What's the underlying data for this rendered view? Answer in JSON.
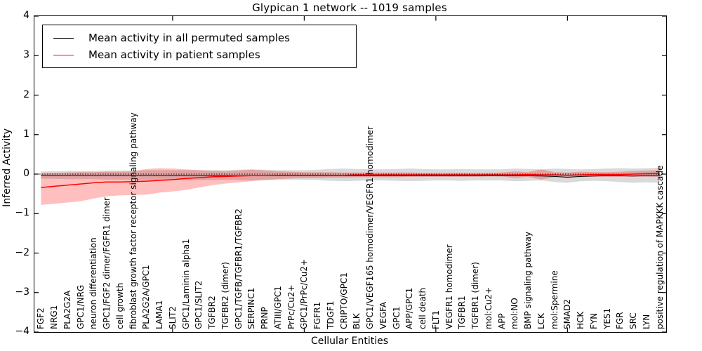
{
  "figure": {
    "title": "Glypican 1 network -- 1019 samples",
    "xlabel": "Cellular Entities",
    "ylabel": "Inferred Activity"
  },
  "legend": {
    "items": [
      {
        "label": "Mean activity in all permuted samples",
        "color": "#000000"
      },
      {
        "label": "Mean activity in patient samples",
        "color": "#ff0000"
      }
    ]
  },
  "chart_data": {
    "type": "line",
    "title": "Glypican 1 network -- 1019 samples",
    "xlabel": "Cellular Entities",
    "ylabel": "Inferred Activity",
    "ylim": [
      -4,
      4
    ],
    "yticks": [
      4,
      3,
      2,
      1,
      0,
      -1,
      -2,
      -3,
      -4
    ],
    "xtick_category_indices": [
      10,
      20,
      30,
      40
    ],
    "zero_reference_line": true,
    "grid": false,
    "legend_position": "upper left",
    "categories": [
      "FGF2",
      "NRG1",
      "PLA2G2A",
      "GPC1/NRG",
      "neuron differentiation",
      "GPC1/FGF2 dimer/FGFR1 dimer",
      "cell growth",
      "fibroblast growth factor receptor signaling pathway",
      "PLA2G2A/GPC1",
      "LAMA1",
      "SLIT2",
      "GPC1/Laminin alpha1",
      "GPC1/SLIT2",
      "TGFBR2",
      "TGFBR2 (dimer)",
      "GPC1/TGFB/TGFBR1/TGFBR2",
      "SERPINC1",
      "PRNP",
      "ATIII/GPC1",
      "PrPc/Cu2+",
      "GPC1/PrPc/Cu2+",
      "FGFR1",
      "TDGF1",
      "CRIPTO/GPC1",
      "BLK",
      "GPC1/VEGF165 homodimer/VEGFR1 homodimer",
      "VEGFA",
      "GPC1",
      "APP/GPC1",
      "cell death",
      "FLT1",
      "VEGFR1 homodimer",
      "TGFBR1",
      "TGFBR1 (dimer)",
      "mol:Cu2+",
      "APP",
      "mol:NO",
      "BMP signaling pathway",
      "LCK",
      "mol:Spermine",
      "SMAD2",
      "HCK",
      "FYN",
      "YES1",
      "FGR",
      "SRC",
      "LYN",
      "positive regulation of MAPKKK cascade"
    ],
    "series": [
      {
        "name": "Mean activity in all permuted samples",
        "color": "#000000",
        "stroke_width": 1.0,
        "values": [
          -0.04,
          -0.04,
          -0.04,
          -0.04,
          -0.04,
          -0.04,
          -0.04,
          -0.04,
          -0.04,
          -0.04,
          -0.04,
          -0.04,
          -0.04,
          -0.04,
          -0.04,
          -0.04,
          -0.04,
          -0.04,
          -0.04,
          -0.04,
          -0.04,
          -0.04,
          -0.04,
          -0.04,
          -0.04,
          -0.04,
          -0.04,
          -0.04,
          -0.04,
          -0.04,
          -0.04,
          -0.04,
          -0.04,
          -0.04,
          -0.04,
          -0.04,
          -0.04,
          -0.04,
          -0.05,
          -0.06,
          -0.08,
          -0.06,
          -0.05,
          -0.04,
          -0.04,
          -0.05,
          -0.04,
          -0.04
        ]
      },
      {
        "name": "Mean activity in patient samples",
        "color": "#ff0000",
        "stroke_width": 1.5,
        "values": [
          -0.34,
          -0.31,
          -0.28,
          -0.25,
          -0.22,
          -0.2,
          -0.2,
          -0.19,
          -0.18,
          -0.16,
          -0.14,
          -0.11,
          -0.09,
          -0.07,
          -0.06,
          -0.05,
          -0.04,
          -0.04,
          -0.03,
          -0.03,
          -0.03,
          -0.03,
          -0.03,
          -0.03,
          -0.02,
          -0.02,
          -0.02,
          -0.02,
          -0.02,
          -0.02,
          -0.02,
          -0.02,
          -0.02,
          -0.02,
          -0.02,
          -0.02,
          -0.02,
          -0.01,
          -0.02,
          -0.02,
          -0.03,
          -0.02,
          -0.01,
          -0.01,
          -0.01,
          0.0,
          0.01,
          0.02
        ]
      }
    ],
    "bands": [
      {
        "name": "permuted-samples-range",
        "color": "#000000",
        "opacity": 0.15,
        "upper": [
          0.07,
          0.07,
          0.08,
          0.08,
          0.08,
          0.09,
          0.09,
          0.09,
          0.1,
          0.1,
          0.1,
          0.1,
          0.1,
          0.1,
          0.1,
          0.11,
          0.12,
          0.11,
          0.1,
          0.1,
          0.1,
          0.11,
          0.13,
          0.14,
          0.13,
          0.12,
          0.12,
          0.13,
          0.14,
          0.13,
          0.12,
          0.12,
          0.13,
          0.12,
          0.12,
          0.12,
          0.14,
          0.13,
          0.12,
          0.14,
          0.13,
          0.12,
          0.13,
          0.14,
          0.15,
          0.14,
          0.15,
          0.16
        ],
        "lower": [
          -0.12,
          -0.12,
          -0.13,
          -0.13,
          -0.13,
          -0.14,
          -0.14,
          -0.14,
          -0.15,
          -0.15,
          -0.15,
          -0.15,
          -0.15,
          -0.15,
          -0.14,
          -0.15,
          -0.16,
          -0.15,
          -0.14,
          -0.14,
          -0.14,
          -0.15,
          -0.17,
          -0.18,
          -0.17,
          -0.16,
          -0.16,
          -0.17,
          -0.18,
          -0.17,
          -0.16,
          -0.16,
          -0.17,
          -0.16,
          -0.16,
          -0.16,
          -0.18,
          -0.17,
          -0.16,
          -0.2,
          -0.22,
          -0.18,
          -0.17,
          -0.18,
          -0.2,
          -0.22,
          -0.21,
          -0.22
        ]
      },
      {
        "name": "patient-samples-range",
        "color": "#ff0000",
        "opacity": 0.25,
        "upper": [
          0.02,
          0.03,
          0.04,
          0.05,
          0.05,
          0.06,
          0.06,
          0.07,
          0.13,
          0.15,
          0.14,
          0.12,
          0.1,
          0.08,
          0.07,
          0.09,
          0.11,
          0.09,
          0.07,
          0.06,
          0.05,
          0.05,
          0.05,
          0.04,
          0.04,
          0.04,
          0.04,
          0.04,
          0.04,
          0.03,
          0.03,
          0.03,
          0.03,
          0.03,
          0.03,
          0.04,
          0.07,
          0.05,
          0.12,
          0.05,
          0.04,
          0.06,
          0.05,
          0.05,
          0.06,
          0.08,
          0.09,
          0.1
        ],
        "lower": [
          -0.78,
          -0.75,
          -0.72,
          -0.69,
          -0.62,
          -0.56,
          -0.54,
          -0.53,
          -0.52,
          -0.47,
          -0.44,
          -0.4,
          -0.34,
          -0.28,
          -0.24,
          -0.21,
          -0.18,
          -0.15,
          -0.13,
          -0.11,
          -0.1,
          -0.1,
          -0.09,
          -0.09,
          -0.08,
          -0.08,
          -0.08,
          -0.08,
          -0.07,
          -0.07,
          -0.07,
          -0.07,
          -0.07,
          -0.07,
          -0.06,
          -0.06,
          -0.1,
          -0.07,
          -0.14,
          -0.08,
          -0.07,
          -0.08,
          -0.07,
          -0.07,
          -0.07,
          -0.07,
          -0.07,
          -0.07
        ]
      }
    ]
  }
}
